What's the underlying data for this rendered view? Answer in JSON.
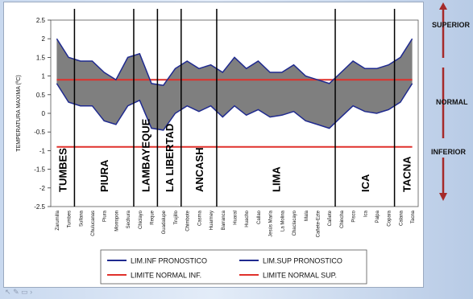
{
  "chart_data": {
    "type": "area",
    "ylabel": "TEMPERATURA MAXIMA (ºC)",
    "ylim": [
      -2.5,
      2.5
    ],
    "yticks": [
      -2.5,
      -2,
      -1.5,
      -1,
      -0.5,
      0,
      0.5,
      1,
      1.5,
      2,
      2.5
    ],
    "ytick_labels": [
      "-2.5",
      "-2",
      "-1.5",
      "-1",
      "-0.5",
      "0",
      "0.5",
      "1",
      "1.5",
      "2",
      "2.5"
    ],
    "categories": [
      "Zarumilla",
      "Tumbes",
      "Sullana",
      "Chulucanas",
      "Piura",
      "Morropon",
      "Sechura",
      "Chiclayo",
      "Reque",
      "Guadalupe",
      "Trujillo",
      "Chimbote",
      "Casma",
      "Huarmey",
      "Barranca",
      "Huaral",
      "Huacho",
      "Callao",
      "Jesús María",
      "La Molina",
      "Chaclacayo",
      "Mala",
      "Cañete-Ezte",
      "Cañete",
      "Chincha",
      "Pisco",
      "Ica",
      "Palpa",
      "Copara",
      "Calana",
      "Tacna"
    ],
    "series": [
      {
        "name": "LIM.INF PRONOSTICO",
        "color": "#1f2a8f",
        "values": [
          0.8,
          0.3,
          0.2,
          0.2,
          -0.2,
          -0.3,
          0.2,
          0.35,
          -0.4,
          -0.45,
          0.0,
          0.2,
          0.05,
          0.2,
          -0.1,
          0.2,
          -0.05,
          0.1,
          -0.1,
          -0.05,
          0.05,
          -0.2,
          -0.3,
          -0.4,
          -0.1,
          0.2,
          0.05,
          0.0,
          0.1,
          0.3,
          0.8
        ]
      },
      {
        "name": "LIM.SUP PRONOSTICO",
        "color": "#1f2a8f",
        "values": [
          2.0,
          1.5,
          1.4,
          1.4,
          1.1,
          0.9,
          1.5,
          1.6,
          0.8,
          0.75,
          1.2,
          1.4,
          1.2,
          1.3,
          1.1,
          1.5,
          1.2,
          1.4,
          1.1,
          1.1,
          1.3,
          1.0,
          0.9,
          0.8,
          1.1,
          1.4,
          1.2,
          1.2,
          1.3,
          1.5,
          2.0
        ]
      },
      {
        "name": "LIMITE NORMAL INF.",
        "color": "#e0302b",
        "values": [
          -0.9,
          -0.9,
          -0.9,
          -0.9,
          -0.9,
          -0.9,
          -0.9,
          -0.9,
          -0.9,
          -0.9,
          -0.9,
          -0.9,
          -0.9,
          -0.9,
          -0.9,
          -0.9,
          -0.9,
          -0.9,
          -0.9,
          -0.9,
          -0.9,
          -0.9,
          -0.9,
          -0.9,
          -0.9,
          -0.9,
          -0.9,
          -0.9,
          -0.9,
          -0.9,
          -0.9
        ]
      },
      {
        "name": "LIMITE NORMAL SUP.",
        "color": "#e0302b",
        "values": [
          0.9,
          0.9,
          0.9,
          0.9,
          0.9,
          0.9,
          0.9,
          0.9,
          0.9,
          0.9,
          0.9,
          0.9,
          0.9,
          0.9,
          0.9,
          0.9,
          0.9,
          0.9,
          0.9,
          0.9,
          0.9,
          0.9,
          0.9,
          0.9,
          0.9,
          0.9,
          0.9,
          0.9,
          0.9,
          0.9,
          0.9
        ]
      }
    ],
    "band_fill": "#7f7f7f",
    "regions": [
      {
        "name": "TUMBES",
        "start": 0,
        "end": 1
      },
      {
        "name": "PIURA",
        "start": 2,
        "end": 6
      },
      {
        "name": "LAMBAYEQUE",
        "start": 7,
        "end": 8
      },
      {
        "name": "LA LIBERTAD",
        "start": 9,
        "end": 10
      },
      {
        "name": "ANCASH",
        "start": 11,
        "end": 13
      },
      {
        "name": "LIMA",
        "start": 14,
        "end": 23
      },
      {
        "name": "ICA",
        "start": 24,
        "end": 28
      },
      {
        "name": "TACNA",
        "start": 29,
        "end": 30
      }
    ],
    "region_boundaries": [
      1.5,
      6.5,
      8.5,
      10.5,
      13.5,
      23.5,
      28.5
    ],
    "grid": false,
    "legend_position": "bottom"
  },
  "side_labels": {
    "superior": "SUPERIOR",
    "normal": "NORMAL",
    "inferior": "INFERIOR"
  },
  "colors": {
    "arrow": "#a52a2a"
  }
}
